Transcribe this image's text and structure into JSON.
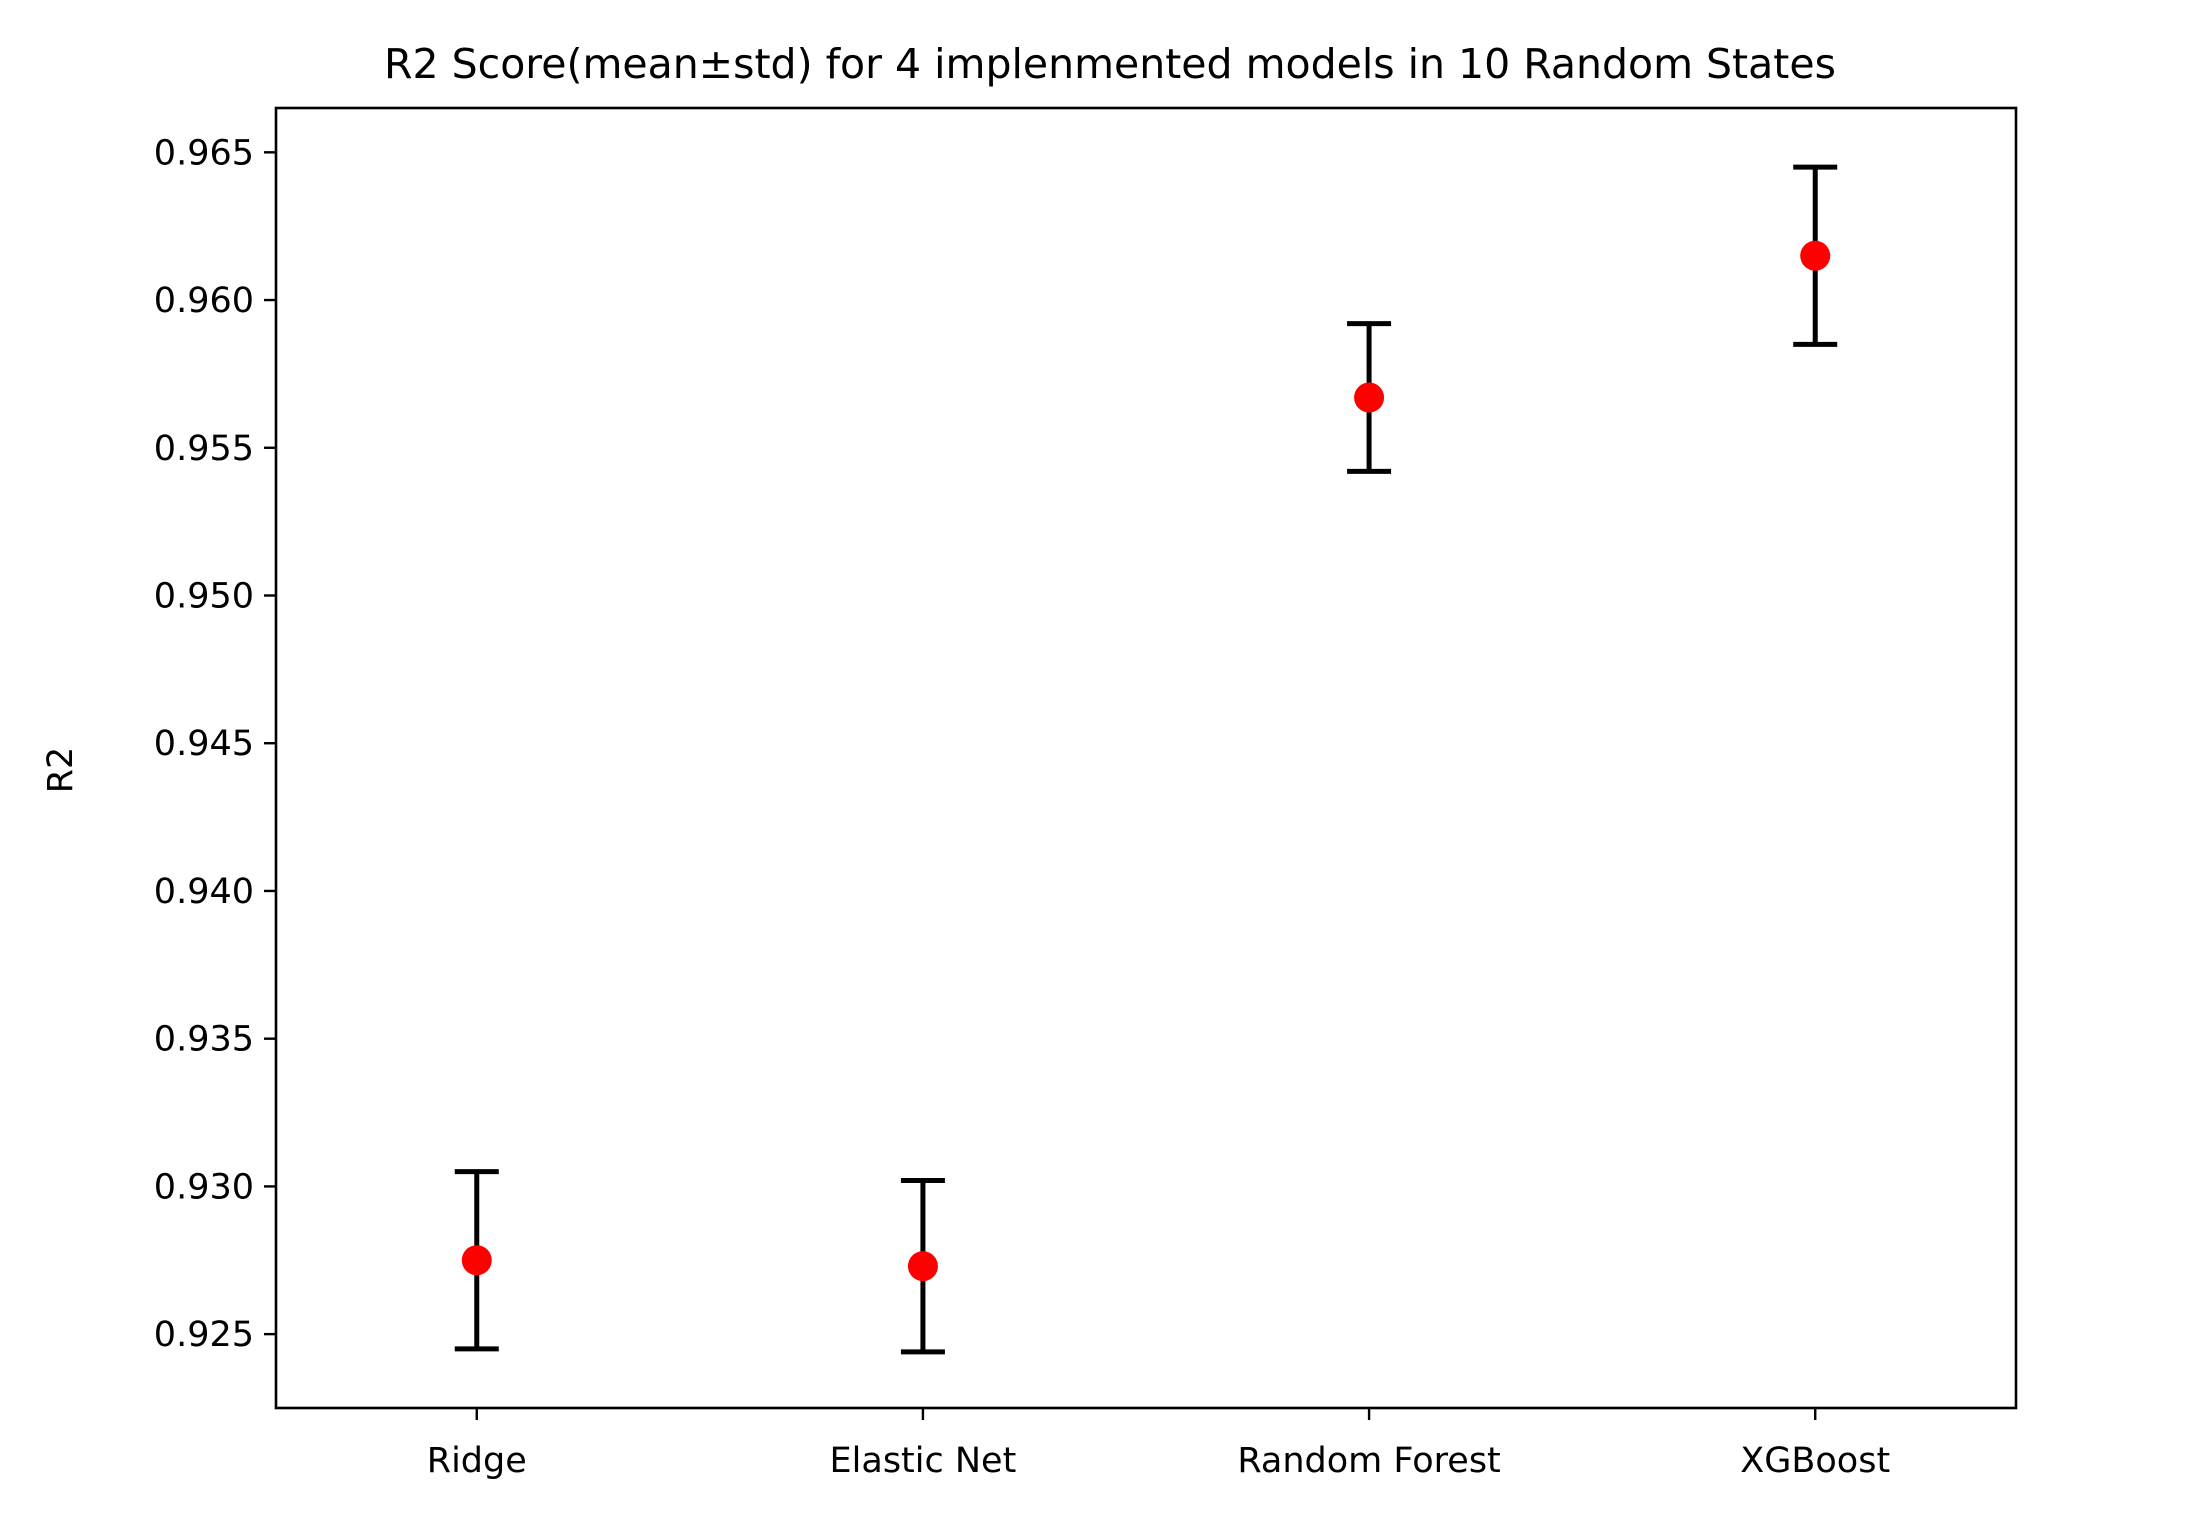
{
  "chart_data": {
    "type": "scatter",
    "title": "R2 Score(mean±std) for 4 implenmented models in 10 Random States",
    "xlabel": "",
    "ylabel": "R2",
    "categories": [
      "Ridge",
      "Elastic Net",
      "Random Forest",
      "XGBoost"
    ],
    "series": [
      {
        "means": [
          0.9275,
          0.9273,
          0.9567,
          0.9615
        ],
        "stds": [
          0.003,
          0.0029,
          0.0025,
          0.003
        ]
      }
    ],
    "ylim": [
      0.9225,
      0.9665
    ],
    "yticks": [
      0.925,
      0.93,
      0.935,
      0.94,
      0.945,
      0.95,
      0.955,
      0.96,
      0.965
    ],
    "ytick_labels": [
      "0.925",
      "0.930",
      "0.935",
      "0.940",
      "0.945",
      "0.950",
      "0.955",
      "0.960",
      "0.965"
    ],
    "grid": false,
    "marker_color": "#ff0000",
    "errorbar_color": "#000000"
  }
}
